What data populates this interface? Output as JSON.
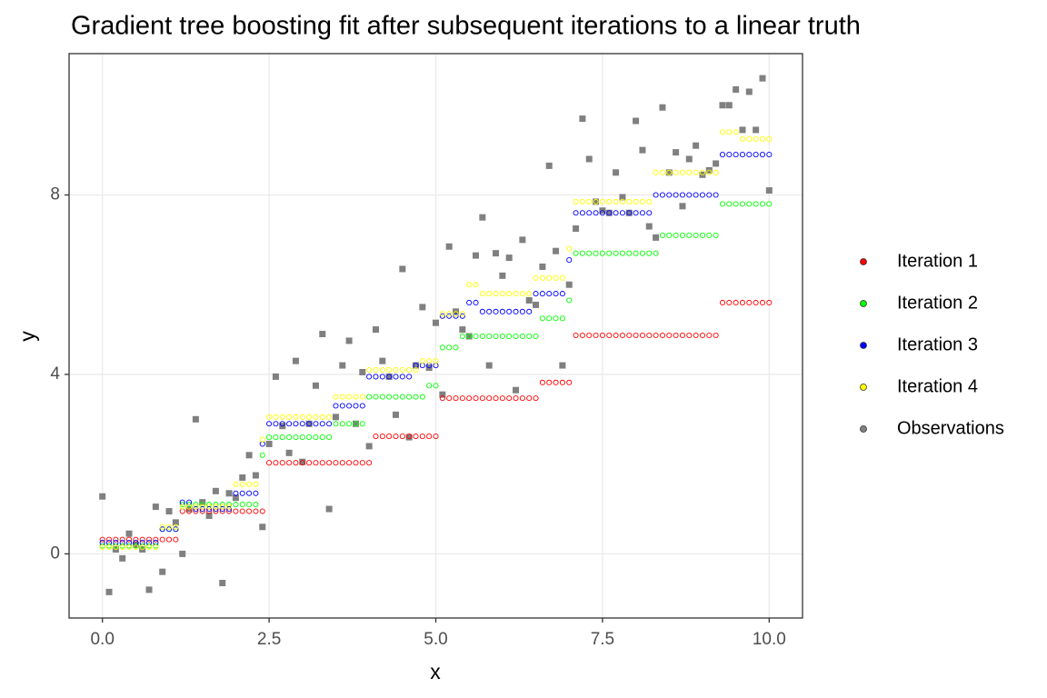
{
  "chart_data": {
    "type": "scatter",
    "title": "Gradient tree boosting fit after subsequent iterations to a linear truth",
    "x_label": "x",
    "y_label": "y",
    "xlim": [
      -0.5,
      10.5
    ],
    "ylim": [
      -1.43,
      11.15
    ],
    "xticks": [
      {
        "value": 0,
        "label": "0.0"
      },
      {
        "value": 2.5,
        "label": "2.5"
      },
      {
        "value": 5,
        "label": "5.0"
      },
      {
        "value": 7.5,
        "label": "7.5"
      },
      {
        "value": 10,
        "label": "10.0"
      }
    ],
    "yticks": [
      0,
      4,
      8
    ],
    "grid": true,
    "legend": "right",
    "x": [
      0,
      0.1,
      0.2,
      0.3,
      0.4,
      0.5,
      0.6,
      0.7,
      0.8,
      0.9,
      1,
      1.1,
      1.2,
      1.3,
      1.4,
      1.5,
      1.6,
      1.7,
      1.8,
      1.9,
      2,
      2.1,
      2.2,
      2.3,
      2.4,
      2.5,
      2.6,
      2.7,
      2.8,
      2.9,
      3,
      3.1,
      3.2,
      3.3,
      3.4,
      3.5,
      3.6,
      3.7,
      3.8,
      3.9,
      4,
      4.1,
      4.2,
      4.3,
      4.4,
      4.5,
      4.6,
      4.7,
      4.8,
      4.9,
      5,
      5.1,
      5.2,
      5.3,
      5.4,
      5.5,
      5.6,
      5.7,
      5.8,
      5.9,
      6,
      6.1,
      6.2,
      6.3,
      6.4,
      6.5,
      6.6,
      6.7,
      6.8,
      6.9,
      7,
      7.1,
      7.2,
      7.3,
      7.4,
      7.5,
      7.6,
      7.7,
      7.8,
      7.9,
      8,
      8.1,
      8.2,
      8.3,
      8.4,
      8.5,
      8.6,
      8.7,
      8.8,
      8.9,
      9,
      9.1,
      9.2,
      9.3,
      9.4,
      9.5,
      9.6,
      9.7,
      9.8,
      9.9,
      10
    ],
    "series": [
      {
        "name": "Observations",
        "color": "#808080",
        "marker": "square",
        "values": [
          1.28,
          -0.85,
          0.1,
          -0.1,
          0.45,
          0.2,
          0.1,
          -0.8,
          1.05,
          -0.4,
          0.95,
          0.7,
          0,
          1,
          3,
          1.15,
          0.85,
          1.4,
          -0.65,
          1.35,
          1.25,
          1.7,
          2.2,
          1.75,
          0.6,
          2.45,
          3.95,
          2.85,
          2.25,
          4.3,
          2.05,
          2.9,
          3.75,
          4.9,
          1,
          3.05,
          4.2,
          4.75,
          2.9,
          4.05,
          2.4,
          5,
          4.3,
          3.95,
          3.1,
          6.35,
          2.6,
          4.2,
          5.5,
          4.15,
          5.15,
          3.55,
          6.85,
          5.4,
          5,
          4.85,
          6.65,
          7.5,
          4.2,
          6.7,
          6.2,
          6.6,
          3.65,
          7,
          5.65,
          5.55,
          6.4,
          8.65,
          6.75,
          4.2,
          6,
          7.25,
          9.7,
          8.8,
          7.85,
          7.65,
          7.6,
          8.5,
          7.95,
          7.6,
          9.65,
          9,
          7.3,
          7.05,
          9.95,
          8.5,
          8.95,
          7.75,
          8.8,
          9.1,
          8.45,
          8.55,
          8.7,
          10,
          10,
          10.35,
          9.45,
          10.3,
          9.45,
          10.6,
          8.1
        ]
      },
      {
        "name": "Iteration 1",
        "color": "#ff0000",
        "marker": "circle",
        "values": [
          0.32,
          0.32,
          0.32,
          0.32,
          0.32,
          0.32,
          0.32,
          0.32,
          0.32,
          0.32,
          0.32,
          0.32,
          0.95,
          0.95,
          0.95,
          0.95,
          0.95,
          0.95,
          0.95,
          0.95,
          0.95,
          0.95,
          0.95,
          0.95,
          0.95,
          2.03,
          2.03,
          2.03,
          2.03,
          2.03,
          2.03,
          2.03,
          2.03,
          2.03,
          2.03,
          2.03,
          2.03,
          2.03,
          2.03,
          2.03,
          2.03,
          2.62,
          2.62,
          2.62,
          2.62,
          2.62,
          2.62,
          2.62,
          2.62,
          2.62,
          2.62,
          3.47,
          3.47,
          3.47,
          3.47,
          3.47,
          3.47,
          3.47,
          3.47,
          3.47,
          3.47,
          3.47,
          3.47,
          3.47,
          3.47,
          3.47,
          3.82,
          3.82,
          3.82,
          3.82,
          3.82,
          4.87,
          4.87,
          4.87,
          4.87,
          4.87,
          4.87,
          4.87,
          4.87,
          4.87,
          4.87,
          4.87,
          4.87,
          4.87,
          4.87,
          4.87,
          4.87,
          4.87,
          4.87,
          4.87,
          4.87,
          4.87,
          4.87,
          5.6,
          5.6,
          5.6,
          5.6,
          5.6,
          5.6,
          5.6,
          5.6
        ]
      },
      {
        "name": "Iteration 2",
        "color": "#00ff00",
        "marker": "circle",
        "values": [
          0.18,
          0.18,
          0.18,
          0.18,
          0.18,
          0.18,
          0.18,
          0.18,
          0.18,
          0.55,
          0.55,
          0.55,
          1.1,
          1.1,
          1.1,
          1.1,
          1.1,
          1.1,
          1.1,
          1.1,
          1.1,
          1.1,
          1.1,
          1.1,
          2.2,
          2.6,
          2.6,
          2.6,
          2.6,
          2.6,
          2.6,
          2.6,
          2.6,
          2.6,
          2.6,
          2.9,
          2.9,
          2.9,
          2.9,
          2.9,
          3.5,
          3.5,
          3.5,
          3.5,
          3.5,
          3.5,
          3.5,
          3.5,
          3.5,
          3.75,
          3.75,
          4.6,
          4.6,
          4.6,
          4.85,
          4.85,
          4.85,
          4.85,
          4.85,
          4.85,
          4.85,
          4.85,
          4.85,
          4.85,
          4.85,
          4.85,
          5.25,
          5.25,
          5.25,
          5.25,
          5.65,
          6.7,
          6.7,
          6.7,
          6.7,
          6.7,
          6.7,
          6.7,
          6.7,
          6.7,
          6.7,
          6.7,
          6.7,
          6.7,
          7.1,
          7.1,
          7.1,
          7.1,
          7.1,
          7.1,
          7.1,
          7.1,
          7.1,
          7.8,
          7.8,
          7.8,
          7.8,
          7.8,
          7.8,
          7.8,
          7.8
        ]
      },
      {
        "name": "Iteration 3",
        "color": "#0000ff",
        "marker": "circle",
        "values": [
          0.25,
          0.25,
          0.25,
          0.25,
          0.25,
          0.25,
          0.25,
          0.25,
          0.25,
          0.55,
          0.55,
          0.55,
          1.15,
          1.15,
          1,
          1,
          1,
          1,
          1,
          1,
          1.35,
          1.35,
          1.35,
          1.35,
          2.45,
          2.9,
          2.9,
          2.9,
          2.9,
          2.9,
          2.9,
          2.9,
          2.9,
          2.9,
          2.9,
          3.3,
          3.3,
          3.3,
          3.3,
          3.3,
          3.95,
          3.95,
          3.95,
          3.95,
          3.95,
          3.95,
          3.95,
          4.2,
          4.2,
          4.2,
          4.2,
          5.3,
          5.3,
          5.3,
          5.3,
          5.6,
          5.6,
          5.4,
          5.4,
          5.4,
          5.4,
          5.4,
          5.4,
          5.4,
          5.4,
          5.8,
          5.8,
          5.8,
          5.8,
          5.8,
          6.55,
          7.6,
          7.6,
          7.6,
          7.6,
          7.6,
          7.6,
          7.6,
          7.6,
          7.6,
          7.6,
          7.6,
          7.6,
          8,
          8,
          8,
          8,
          8,
          8,
          8,
          8,
          8,
          8,
          8.9,
          8.9,
          8.9,
          8.9,
          8.9,
          8.9,
          8.9,
          8.9
        ]
      },
      {
        "name": "Iteration 4",
        "color": "#ffff00",
        "marker": "circle",
        "values": [
          0.15,
          0.15,
          0.15,
          0.15,
          0.15,
          0.15,
          0.15,
          0.15,
          0.15,
          0.6,
          0.6,
          0.6,
          1.05,
          1.05,
          1.05,
          1.05,
          1.05,
          1.05,
          1.05,
          1.05,
          1.55,
          1.55,
          1.55,
          1.55,
          2.55,
          3.05,
          3.05,
          3.05,
          3.05,
          3.05,
          3.05,
          3.05,
          3.05,
          3.05,
          3.05,
          3.5,
          3.5,
          3.5,
          3.5,
          3.5,
          4.1,
          4.1,
          4.1,
          4.1,
          4.1,
          4.1,
          4.1,
          4.1,
          4.3,
          4.3,
          4.3,
          5.35,
          5.35,
          5.35,
          5.35,
          6,
          6,
          5.8,
          5.8,
          5.8,
          5.8,
          5.8,
          5.8,
          5.8,
          5.8,
          6.15,
          6.15,
          6.15,
          6.15,
          6.15,
          6.8,
          7.85,
          7.85,
          7.85,
          7.85,
          7.85,
          7.85,
          7.85,
          7.85,
          7.85,
          7.85,
          7.85,
          7.85,
          8.5,
          8.5,
          8.5,
          8.5,
          8.5,
          8.5,
          8.5,
          8.5,
          8.5,
          8.5,
          9.4,
          9.4,
          9.4,
          9.25,
          9.25,
          9.25,
          9.25,
          9.25
        ]
      }
    ],
    "legend_order": [
      1,
      2,
      3,
      4,
      0
    ]
  }
}
